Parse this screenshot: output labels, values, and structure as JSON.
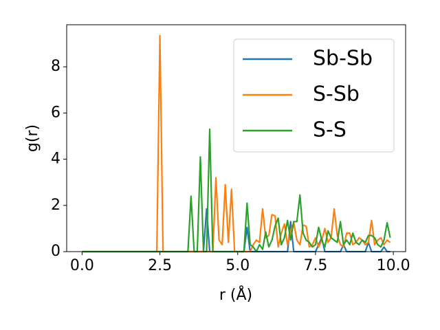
{
  "chart_data": {
    "type": "line",
    "xlabel": "r (Å)",
    "ylabel": "g(r)",
    "x": [
      0,
      0.1,
      0.2,
      0.3,
      0.4,
      0.5,
      0.6,
      0.7,
      0.8,
      0.9,
      1,
      1.1,
      1.2,
      1.3,
      1.4,
      1.5,
      1.6,
      1.7,
      1.8,
      1.9,
      2,
      2.1,
      2.2,
      2.3,
      2.4,
      2.5,
      2.6,
      2.7,
      2.8,
      2.9,
      3,
      3.1,
      3.2,
      3.3,
      3.4,
      3.5,
      3.6,
      3.7,
      3.8,
      3.9,
      4,
      4.1,
      4.2,
      4.3,
      4.4,
      4.5,
      4.6,
      4.7,
      4.8,
      4.9,
      5,
      5.1,
      5.2,
      5.3,
      5.4,
      5.5,
      5.6,
      5.7,
      5.8,
      5.9,
      6,
      6.1,
      6.2,
      6.3,
      6.4,
      6.5,
      6.6,
      6.7,
      6.8,
      6.9,
      7,
      7.1,
      7.2,
      7.3,
      7.4,
      7.5,
      7.6,
      7.7,
      7.8,
      7.9,
      8,
      8.1,
      8.2,
      8.3,
      8.4,
      8.5,
      8.6,
      8.7,
      8.8,
      8.9,
      9,
      9.1,
      9.2,
      9.3,
      9.4,
      9.5,
      9.6,
      9.7,
      9.8,
      9.9
    ],
    "series": [
      {
        "name": "Sb-Sb",
        "color": "#1f77b4",
        "values": [
          0,
          0,
          0,
          0,
          0,
          0,
          0,
          0,
          0,
          0,
          0,
          0,
          0,
          0,
          0,
          0,
          0,
          0,
          0,
          0,
          0,
          0,
          0,
          0,
          0,
          0,
          0,
          0,
          0,
          0,
          0,
          0,
          0,
          0,
          0,
          0,
          0,
          0,
          0,
          0,
          1.85,
          0,
          0,
          0,
          0,
          0,
          0,
          0,
          0,
          0,
          0,
          0,
          0,
          1.05,
          0,
          0,
          0,
          0,
          0,
          0,
          0,
          0,
          0,
          0,
          0,
          0,
          0,
          1.3,
          0,
          0,
          0,
          0,
          0,
          0,
          0,
          0,
          0.3,
          0.6,
          0,
          0,
          0,
          0,
          0,
          0,
          0.3,
          0,
          0,
          0,
          0,
          0,
          0,
          0,
          0.4,
          0,
          0,
          0,
          0,
          0.2,
          0,
          0
        ]
      },
      {
        "name": "S-Sb",
        "color": "#ff7f0e",
        "values": [
          0,
          0,
          0,
          0,
          0,
          0,
          0,
          0,
          0,
          0,
          0,
          0,
          0,
          0,
          0,
          0,
          0,
          0,
          0,
          0,
          0,
          0,
          0,
          0,
          0,
          9.35,
          0,
          0,
          0,
          0,
          0,
          0,
          0,
          0,
          0,
          0,
          0,
          0,
          0,
          0,
          0,
          0,
          0,
          3.2,
          0.5,
          0.3,
          2.9,
          0.4,
          2.7,
          0,
          0,
          0,
          0,
          0,
          0,
          0.3,
          0.5,
          0.4,
          1.85,
          0.6,
          0.7,
          1.6,
          1.55,
          0.2,
          0.8,
          1.2,
          0.3,
          0.9,
          1.25,
          0.5,
          0.3,
          1.15,
          1.1,
          0.2,
          0.3,
          0.6,
          0.2,
          0.5,
          1.0,
          0.4,
          0.6,
          1.85,
          0.7,
          0.3,
          0.2,
          0.8,
          0.8,
          0.3,
          0.4,
          0.6,
          0.5,
          0.3,
          0.4,
          1.35,
          0.3,
          0.5,
          0.6,
          0.3,
          0.5,
          0.4
        ]
      },
      {
        "name": "S-S",
        "color": "#2ca02c",
        "values": [
          0,
          0,
          0,
          0,
          0,
          0,
          0,
          0,
          0,
          0,
          0,
          0,
          0,
          0,
          0,
          0,
          0,
          0,
          0,
          0,
          0,
          0,
          0,
          0,
          0,
          0,
          0,
          0,
          0,
          0,
          0,
          0,
          0,
          0,
          0,
          2.4,
          0,
          0,
          4.1,
          0,
          0,
          5.3,
          0,
          0,
          0,
          0,
          0,
          0,
          0,
          0,
          0,
          0,
          0,
          2.1,
          0.3,
          0.2,
          0,
          0.3,
          0.1,
          0.85,
          0.2,
          0.5,
          1.1,
          1.45,
          0.3,
          0.6,
          1.35,
          0.5,
          1.3,
          1.3,
          2.45,
          0.8,
          0.5,
          0.4,
          0.2,
          0.3,
          1.05,
          0.5,
          0.2,
          0.9,
          0.6,
          0.5,
          0.4,
          1.3,
          0.3,
          0.5,
          0.3,
          0.8,
          0.4,
          0.3,
          0.5,
          0.4,
          0.7,
          0.7,
          0.6,
          0.3,
          0.2,
          0.5,
          1.25,
          0.6
        ]
      }
    ],
    "xlim": [
      -0.495,
      10.395
    ],
    "xticks": [
      {
        "value": 0,
        "label": "0.0"
      },
      2.5,
      {
        "value": 5,
        "label": "5.0"
      },
      7.5,
      {
        "value": 10,
        "label": "10.0"
      }
    ],
    "ylim": [
      0,
      9.82
    ],
    "yticks": [
      0,
      2,
      4,
      6,
      8
    ],
    "legend": "upper right"
  }
}
